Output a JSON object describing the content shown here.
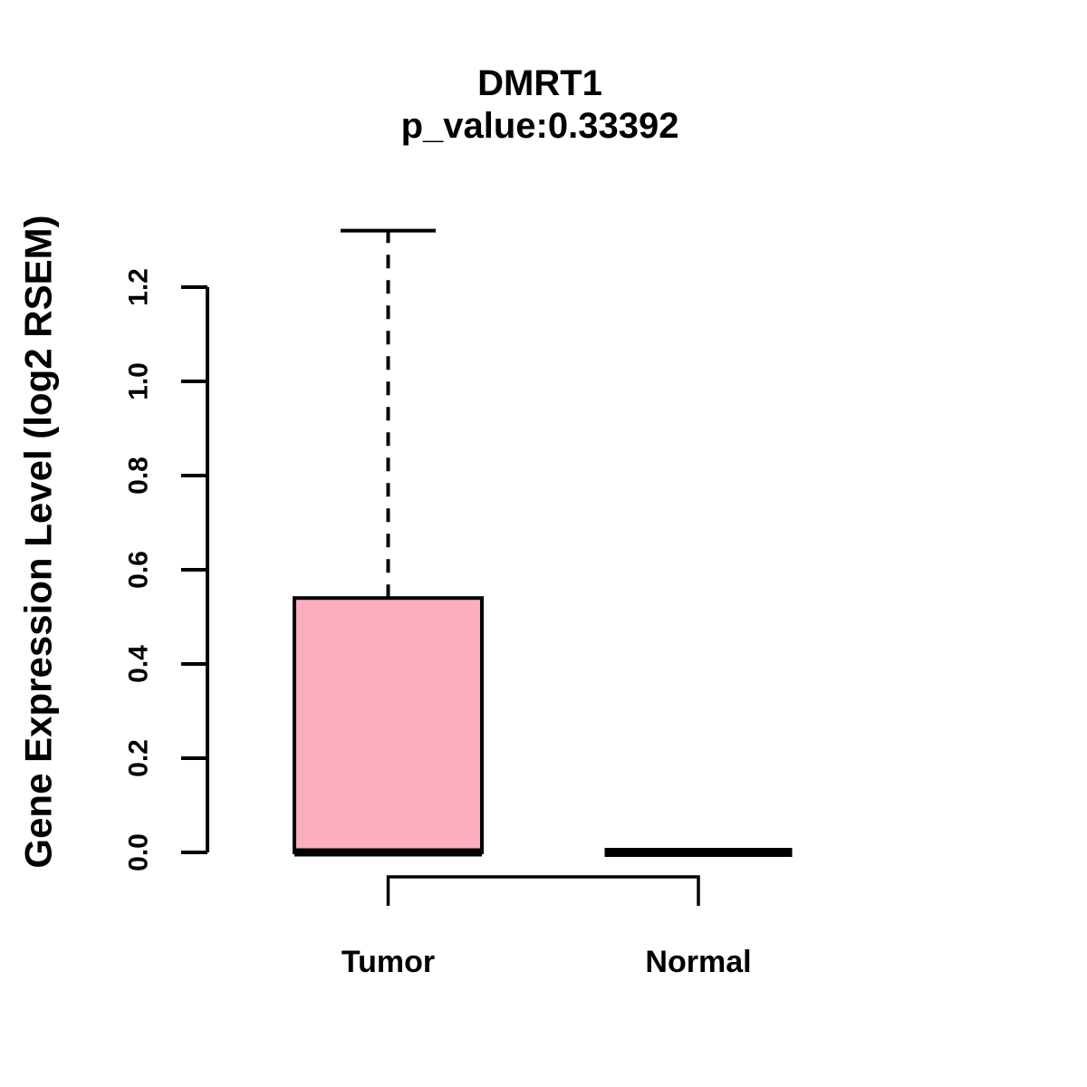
{
  "chart_data": {
    "type": "boxplot",
    "title": "DMRT1",
    "subtitle": "p_value:0.33392",
    "ylabel": "Gene Expression Level (log2 RSEM)",
    "categories": [
      "Tumor",
      "Normal"
    ],
    "series": [
      {
        "name": "Tumor",
        "whisker_low": 0,
        "q1": 0,
        "median": 0,
        "q3": 0.54,
        "whisker_high": 1.32
      },
      {
        "name": "Normal",
        "whisker_low": 0,
        "q1": 0,
        "median": 0,
        "q3": 0,
        "whisker_high": 0
      }
    ],
    "yticks": [
      {
        "value": 0.0,
        "label": "0.0"
      },
      {
        "value": 0.2,
        "label": "0.2"
      },
      {
        "value": 0.4,
        "label": "0.4"
      },
      {
        "value": 0.6,
        "label": "0.6"
      },
      {
        "value": 0.8,
        "label": "0.8"
      },
      {
        "value": 1.0,
        "label": "1.0"
      },
      {
        "value": 1.2,
        "label": "1.2"
      }
    ],
    "ylim": [
      0,
      1.32
    ],
    "legend": "none",
    "grid": false,
    "colors": {
      "box_fill": "#FCAEC0",
      "line": "#000000",
      "background": "#FFFFFF"
    },
    "comparison_bracket": {
      "from": "Tumor",
      "to": "Normal"
    }
  }
}
